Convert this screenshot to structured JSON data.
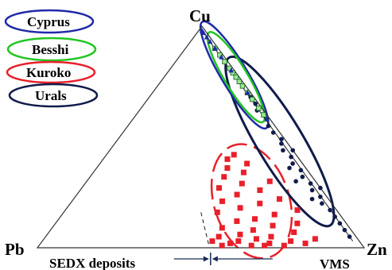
{
  "chart_data": {
    "type": "scatter",
    "subtype": "ternary",
    "vertices": {
      "top": "Cu",
      "left": "Pb",
      "right": "Zn"
    },
    "bottom_labels": {
      "left": "SEDX deposits",
      "right": "VMS"
    },
    "legend_placement": "top-left",
    "grid": false,
    "legend": [
      {
        "name": "Cyprus",
        "color": "#1f2aa8"
      },
      {
        "name": "Besshi",
        "color": "#22c522"
      },
      {
        "name": "Kuroko",
        "color": "#e8202a"
      },
      {
        "name": "Urals",
        "color": "#0f1b4a"
      }
    ],
    "series": [
      {
        "name": "Cyprus",
        "marker": "triangle",
        "color": "#1f2aa8",
        "field_ellipse": {
          "center": {
            "Cu": 0.78,
            "Pb": 0.01,
            "Zn": 0.21
          },
          "rx_data": 0.08,
          "ry_data": 0.38,
          "rotate_deg": -31
        },
        "points": [
          {
            "Cu": 0.98,
            "Pb": 0.01,
            "Zn": 0.01
          },
          {
            "Cu": 0.97,
            "Pb": 0.01,
            "Zn": 0.02
          },
          {
            "Cu": 0.95,
            "Pb": 0.01,
            "Zn": 0.04
          },
          {
            "Cu": 0.93,
            "Pb": 0.01,
            "Zn": 0.06
          },
          {
            "Cu": 0.9,
            "Pb": 0.01,
            "Zn": 0.09
          },
          {
            "Cu": 0.86,
            "Pb": 0.01,
            "Zn": 0.13
          },
          {
            "Cu": 0.8,
            "Pb": 0.01,
            "Zn": 0.19
          },
          {
            "Cu": 0.7,
            "Pb": 0.01,
            "Zn": 0.29
          },
          {
            "Cu": 0.58,
            "Pb": 0.01,
            "Zn": 0.41
          }
        ]
      },
      {
        "name": "Besshi",
        "marker": "square-open",
        "color": "#22c522",
        "field_ellipse": {
          "center": {
            "Cu": 0.77,
            "Pb": 0.01,
            "Zn": 0.22
          },
          "rx_data": 0.07,
          "ry_data": 0.32,
          "rotate_deg": -31
        },
        "points": [
          {
            "Cu": 0.9,
            "Pb": 0.01,
            "Zn": 0.09
          },
          {
            "Cu": 0.87,
            "Pb": 0.01,
            "Zn": 0.12
          },
          {
            "Cu": 0.84,
            "Pb": 0.01,
            "Zn": 0.15
          },
          {
            "Cu": 0.81,
            "Pb": 0.01,
            "Zn": 0.18
          },
          {
            "Cu": 0.79,
            "Pb": 0.01,
            "Zn": 0.2
          },
          {
            "Cu": 0.77,
            "Pb": 0.01,
            "Zn": 0.22
          },
          {
            "Cu": 0.75,
            "Pb": 0.01,
            "Zn": 0.24
          },
          {
            "Cu": 0.73,
            "Pb": 0.01,
            "Zn": 0.26
          },
          {
            "Cu": 0.7,
            "Pb": 0.01,
            "Zn": 0.29
          },
          {
            "Cu": 0.67,
            "Pb": 0.01,
            "Zn": 0.32
          },
          {
            "Cu": 0.63,
            "Pb": 0.01,
            "Zn": 0.36
          },
          {
            "Cu": 0.6,
            "Pb": 0.01,
            "Zn": 0.39
          }
        ]
      },
      {
        "name": "Urals",
        "marker": "circle",
        "color": "#0f1b4a",
        "field_ellipse": {
          "center": {
            "Cu": 0.48,
            "Pb": 0.02,
            "Zn": 0.5
          },
          "rx_data": 0.14,
          "ry_data": 0.6,
          "rotate_deg": -31
        },
        "points": [
          {
            "Cu": 0.68,
            "Pb": 0.01,
            "Zn": 0.31
          },
          {
            "Cu": 0.65,
            "Pb": 0.01,
            "Zn": 0.34
          },
          {
            "Cu": 0.62,
            "Pb": 0.02,
            "Zn": 0.36
          },
          {
            "Cu": 0.58,
            "Pb": 0.01,
            "Zn": 0.41
          },
          {
            "Cu": 0.55,
            "Pb": 0.02,
            "Zn": 0.43
          },
          {
            "Cu": 0.52,
            "Pb": 0.02,
            "Zn": 0.46
          },
          {
            "Cu": 0.49,
            "Pb": 0.01,
            "Zn": 0.5
          },
          {
            "Cu": 0.47,
            "Pb": 0.02,
            "Zn": 0.51
          },
          {
            "Cu": 0.44,
            "Pb": 0.03,
            "Zn": 0.53
          },
          {
            "Cu": 0.41,
            "Pb": 0.02,
            "Zn": 0.57
          },
          {
            "Cu": 0.38,
            "Pb": 0.03,
            "Zn": 0.59
          },
          {
            "Cu": 0.35,
            "Pb": 0.02,
            "Zn": 0.63
          },
          {
            "Cu": 0.32,
            "Pb": 0.03,
            "Zn": 0.65
          },
          {
            "Cu": 0.29,
            "Pb": 0.02,
            "Zn": 0.69
          },
          {
            "Cu": 0.26,
            "Pb": 0.03,
            "Zn": 0.71
          },
          {
            "Cu": 0.23,
            "Pb": 0.02,
            "Zn": 0.75
          },
          {
            "Cu": 0.2,
            "Pb": 0.03,
            "Zn": 0.77
          },
          {
            "Cu": 0.17,
            "Pb": 0.02,
            "Zn": 0.81
          },
          {
            "Cu": 0.14,
            "Pb": 0.02,
            "Zn": 0.84
          },
          {
            "Cu": 0.11,
            "Pb": 0.02,
            "Zn": 0.87
          },
          {
            "Cu": 0.08,
            "Pb": 0.02,
            "Zn": 0.9
          },
          {
            "Cu": 0.05,
            "Pb": 0.02,
            "Zn": 0.93
          },
          {
            "Cu": 0.36,
            "Pb": 0.05,
            "Zn": 0.59
          },
          {
            "Cu": 0.3,
            "Pb": 0.06,
            "Zn": 0.64
          },
          {
            "Cu": 0.22,
            "Pb": 0.05,
            "Zn": 0.73
          },
          {
            "Cu": 0.44,
            "Pb": 0.0,
            "Zn": 0.56
          },
          {
            "Cu": 0.27,
            "Pb": 0.0,
            "Zn": 0.73
          }
        ]
      },
      {
        "name": "Kuroko",
        "marker": "square-filled",
        "color": "#e8202a",
        "field_ellipse": {
          "center": {
            "Cu": 0.21,
            "Pb": 0.24,
            "Zn": 0.55
          },
          "rx_data": 0.23,
          "ry_data": 0.36,
          "rotate_deg": -18
        },
        "points": [
          {
            "Cu": 0.42,
            "Pb": 0.19,
            "Zn": 0.39
          },
          {
            "Cu": 0.4,
            "Pb": 0.22,
            "Zn": 0.38
          },
          {
            "Cu": 0.38,
            "Pb": 0.17,
            "Zn": 0.45
          },
          {
            "Cu": 0.36,
            "Pb": 0.24,
            "Zn": 0.4
          },
          {
            "Cu": 0.34,
            "Pb": 0.2,
            "Zn": 0.46
          },
          {
            "Cu": 0.32,
            "Pb": 0.27,
            "Zn": 0.41
          },
          {
            "Cu": 0.3,
            "Pb": 0.14,
            "Zn": 0.56
          },
          {
            "Cu": 0.29,
            "Pb": 0.23,
            "Zn": 0.48
          },
          {
            "Cu": 0.27,
            "Pb": 0.31,
            "Zn": 0.42
          },
          {
            "Cu": 0.26,
            "Pb": 0.19,
            "Zn": 0.55
          },
          {
            "Cu": 0.24,
            "Pb": 0.27,
            "Zn": 0.49
          },
          {
            "Cu": 0.22,
            "Pb": 0.15,
            "Zn": 0.63
          },
          {
            "Cu": 0.21,
            "Pb": 0.33,
            "Zn": 0.46
          },
          {
            "Cu": 0.2,
            "Pb": 0.22,
            "Zn": 0.58
          },
          {
            "Cu": 0.18,
            "Pb": 0.29,
            "Zn": 0.53
          },
          {
            "Cu": 0.17,
            "Pb": 0.12,
            "Zn": 0.71
          },
          {
            "Cu": 0.16,
            "Pb": 0.37,
            "Zn": 0.47
          },
          {
            "Cu": 0.15,
            "Pb": 0.2,
            "Zn": 0.65
          },
          {
            "Cu": 0.13,
            "Pb": 0.27,
            "Zn": 0.6
          },
          {
            "Cu": 0.12,
            "Pb": 0.33,
            "Zn": 0.55
          },
          {
            "Cu": 0.11,
            "Pb": 0.15,
            "Zn": 0.74
          },
          {
            "Cu": 0.1,
            "Pb": 0.23,
            "Zn": 0.67
          },
          {
            "Cu": 0.09,
            "Pb": 0.39,
            "Zn": 0.52
          },
          {
            "Cu": 0.08,
            "Pb": 0.3,
            "Zn": 0.62
          },
          {
            "Cu": 0.07,
            "Pb": 0.18,
            "Zn": 0.75
          },
          {
            "Cu": 0.06,
            "Pb": 0.35,
            "Zn": 0.59
          },
          {
            "Cu": 0.05,
            "Pb": 0.26,
            "Zn": 0.69
          },
          {
            "Cu": 0.05,
            "Pb": 0.42,
            "Zn": 0.53
          },
          {
            "Cu": 0.04,
            "Pb": 0.13,
            "Zn": 0.83
          },
          {
            "Cu": 0.04,
            "Pb": 0.31,
            "Zn": 0.65
          },
          {
            "Cu": 0.03,
            "Pb": 0.21,
            "Zn": 0.76
          },
          {
            "Cu": 0.03,
            "Pb": 0.37,
            "Zn": 0.6
          },
          {
            "Cu": 0.03,
            "Pb": 0.45,
            "Zn": 0.52
          },
          {
            "Cu": 0.02,
            "Pb": 0.28,
            "Zn": 0.7
          },
          {
            "Cu": 0.02,
            "Pb": 0.4,
            "Zn": 0.58
          },
          {
            "Cu": 0.02,
            "Pb": 0.17,
            "Zn": 0.81
          },
          {
            "Cu": 0.01,
            "Pb": 0.34,
            "Zn": 0.65
          },
          {
            "Cu": 0.01,
            "Pb": 0.24,
            "Zn": 0.75
          },
          {
            "Cu": 0.01,
            "Pb": 0.43,
            "Zn": 0.56
          },
          {
            "Cu": 0.01,
            "Pb": 0.3,
            "Zn": 0.69
          }
        ]
      }
    ],
    "boundary_marker": {
      "Cu": 0.0,
      "Pb": 0.47,
      "Zn": 0.53
    }
  }
}
